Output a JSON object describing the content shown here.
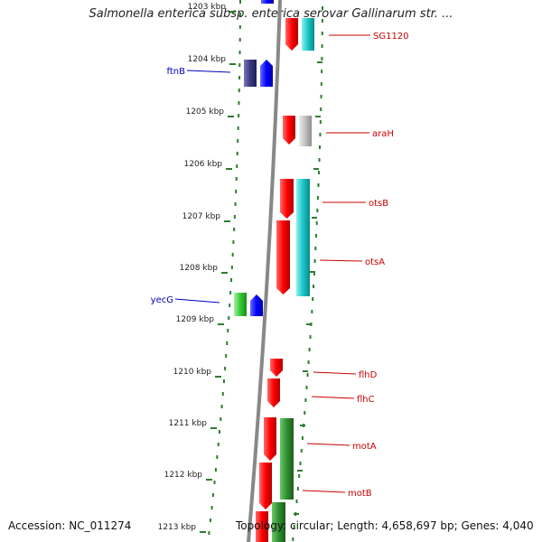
{
  "header": {
    "title": "Salmonella enterica subsp. enterica serovar Gallinarum str. ..."
  },
  "footer": {
    "accession": "Accession: NC_011274",
    "topology": "Topology: circular; Length: 4,658,697 bp; Genes: 4,040"
  },
  "scale_labels": [
    "1203 kbp",
    "1204 kbp",
    "1205 kbp",
    "1206 kbp",
    "1207 kbp",
    "1208 kbp",
    "1209 kbp",
    "1210 kbp",
    "1211 kbp",
    "1212 kbp",
    "1213 kbp"
  ],
  "genes_right": [
    "SG1120",
    "araH",
    "otsB",
    "otsA",
    "flhD",
    "flhC",
    "motA",
    "motB"
  ],
  "genes_left": [
    "ftnB",
    "yecG"
  ],
  "colors": {
    "backbone": "#888888",
    "dots": "#2e7d2e",
    "red": "#e60000",
    "cyan": "#20c8c8",
    "gray": "#bdbdbd",
    "blue": "#0000ee",
    "navy": "#3a3a80",
    "green": "#3a9a3a",
    "lime": "#33cc33",
    "right_label": "#cc0000",
    "left_label": "#0000bb"
  }
}
